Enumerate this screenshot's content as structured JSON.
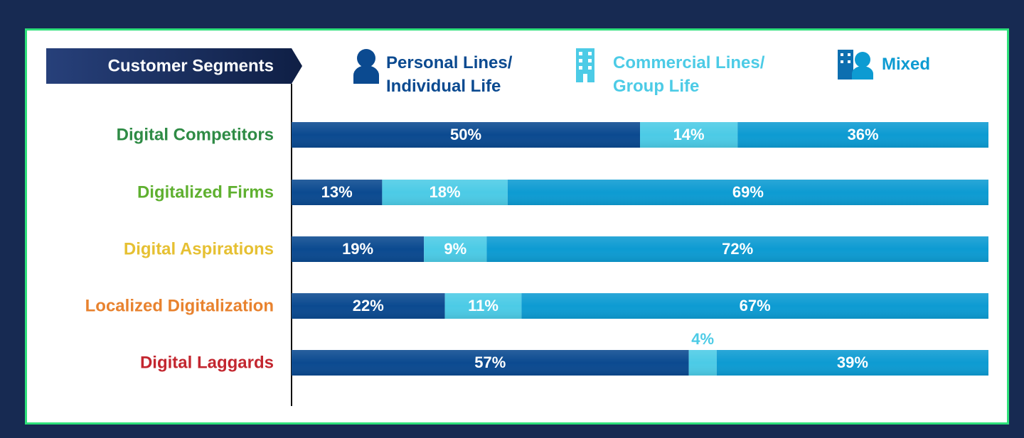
{
  "chart_data": {
    "type": "stacked-bar-horizontal",
    "ylabel": "Customer Segments",
    "categories": [
      "Digital Competitors",
      "Digitalized Firms",
      "Digital Aspirations",
      "Localized Digitalization",
      "Digital Laggards"
    ],
    "category_colors": [
      "#2e8b45",
      "#5fb030",
      "#e6c032",
      "#e8822e",
      "#c3262f"
    ],
    "xlim": [
      0,
      100
    ],
    "series": [
      {
        "name": "Personal Lines/ Individual Life",
        "color": "#0b4a90",
        "values": [
          50,
          13,
          19,
          22,
          57
        ],
        "value_labels": [
          "50%",
          "13%",
          "19%",
          "22%",
          "57%"
        ]
      },
      {
        "name": "Commercial Lines/ Group Life",
        "color": "#4ccbe6",
        "values": [
          14,
          18,
          9,
          11,
          4
        ],
        "value_labels": [
          "14%",
          "18%",
          "9%",
          "11%",
          "4%"
        ]
      },
      {
        "name": "Mixed",
        "color": "#0d9bd2",
        "values": [
          36,
          69,
          72,
          67,
          39
        ],
        "value_labels": [
          "36%",
          "69%",
          "72%",
          "67%",
          "39%"
        ]
      }
    ]
  }
}
